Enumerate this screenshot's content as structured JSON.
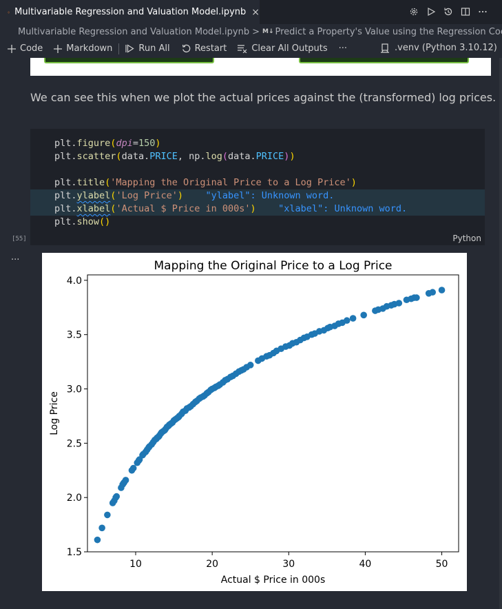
{
  "tab": {
    "title": "Multivariable Regression and Valuation Model.ipynb",
    "close": "×"
  },
  "title_actions": [
    "settings-icon",
    "run-icon",
    "history-icon",
    "split-editor-icon",
    "more-icon"
  ],
  "breadcrumb": {
    "file": "Multivariable Regression and Valuation Model.ipynb",
    "separator": ">",
    "md_badge": "M↓",
    "section": "Predict a Property's Value using the Regression Coeffic"
  },
  "toolbar": {
    "code": "Code",
    "markdown": "Markdown",
    "run_all": "Run All",
    "restart": "Restart",
    "clear_outputs": "Clear All Outputs",
    "more": "···"
  },
  "kernel": ".venv (Python 3.10.12)",
  "markdown_text": "We can see this when we plot the actual prices against the (transformed) log prices.",
  "code_lines": [
    "plt.figure(dpi=150)",
    "plt.scatter(data.PRICE, np.log(data.PRICE))",
    "",
    "plt.title('Mapping the Original Price to a Log Price')",
    "plt.ylabel('Log Price')",
    "plt.xlabel('Actual $ Price in 000s')"
  ],
  "code_last": "plt.show()",
  "diagnostics": [
    "\"ylabel\": Unknown word.",
    "\"xlabel\": Unknown word."
  ],
  "cell_language": "Python",
  "execution_count": "[55]",
  "output_dots": "...",
  "colors": {
    "marker": "#1f77b4",
    "accent": "#79c142"
  },
  "chart_data": {
    "type": "scatter",
    "title": "Mapping the Original Price to a Log Price",
    "xlabel": "Actual $ Price in 000s",
    "ylabel": "Log Price",
    "xlim": [
      3.7,
      52.2
    ],
    "ylim": [
      1.5,
      4.05
    ],
    "xticks": [
      10,
      20,
      30,
      40,
      50
    ],
    "yticks": [
      1.5,
      2.0,
      2.5,
      3.0,
      3.5,
      4.0
    ],
    "grid": false,
    "x": [
      5.0,
      5.6,
      6.3,
      7.0,
      7.2,
      7.4,
      7.5,
      8.1,
      8.3,
      8.4,
      8.5,
      8.7,
      9.5,
      9.7,
      10.2,
      10.4,
      10.5,
      10.9,
      11.0,
      11.3,
      11.5,
      11.7,
      11.8,
      12.1,
      12.3,
      12.5,
      12.7,
      12.8,
      13.0,
      13.1,
      13.3,
      13.4,
      13.6,
      13.8,
      13.9,
      14.1,
      14.3,
      14.4,
      14.6,
      14.8,
      15.0,
      15.2,
      15.4,
      15.6,
      15.7,
      16.0,
      16.2,
      16.5,
      16.7,
      17.0,
      17.2,
      17.5,
      17.8,
      18.0,
      18.3,
      18.5,
      18.8,
      19.0,
      19.3,
      19.5,
      19.8,
      20.0,
      20.3,
      20.5,
      20.8,
      21.0,
      21.4,
      21.7,
      22.0,
      22.4,
      22.7,
      23.1,
      23.5,
      23.8,
      24.1,
      24.5,
      25.0,
      26.0,
      26.5,
      27.1,
      27.5,
      28.0,
      28.4,
      29.0,
      29.6,
      30.1,
      30.5,
      31.0,
      31.5,
      32.0,
      32.4,
      33.0,
      33.4,
      34.0,
      34.6,
      35.1,
      35.4,
      36.0,
      36.5,
      37.0,
      37.6,
      38.4,
      39.8,
      41.3,
      41.7,
      42.3,
      42.8,
      43.4,
      43.8,
      44.4,
      45.4,
      46.0,
      46.4,
      46.7,
      48.3,
      48.8,
      50.0
    ],
    "y": [
      1.61,
      1.72,
      1.84,
      1.95,
      1.97,
      2.0,
      2.01,
      2.09,
      2.12,
      2.13,
      2.14,
      2.16,
      2.25,
      2.27,
      2.32,
      2.34,
      2.35,
      2.39,
      2.4,
      2.42,
      2.44,
      2.46,
      2.47,
      2.49,
      2.51,
      2.53,
      2.54,
      2.55,
      2.56,
      2.57,
      2.59,
      2.6,
      2.61,
      2.62,
      2.63,
      2.65,
      2.66,
      2.67,
      2.68,
      2.69,
      2.71,
      2.72,
      2.73,
      2.74,
      2.75,
      2.77,
      2.79,
      2.8,
      2.82,
      2.83,
      2.84,
      2.86,
      2.88,
      2.89,
      2.91,
      2.92,
      2.93,
      2.94,
      2.96,
      2.97,
      2.99,
      3.0,
      3.01,
      3.02,
      3.03,
      3.04,
      3.06,
      3.08,
      3.09,
      3.11,
      3.12,
      3.14,
      3.16,
      3.17,
      3.18,
      3.2,
      3.22,
      3.26,
      3.28,
      3.3,
      3.31,
      3.33,
      3.35,
      3.37,
      3.39,
      3.4,
      3.42,
      3.43,
      3.45,
      3.47,
      3.48,
      3.5,
      3.51,
      3.53,
      3.54,
      3.56,
      3.57,
      3.58,
      3.6,
      3.61,
      3.63,
      3.65,
      3.68,
      3.72,
      3.73,
      3.74,
      3.76,
      3.77,
      3.78,
      3.79,
      3.82,
      3.83,
      3.84,
      3.84,
      3.88,
      3.89,
      3.91
    ]
  }
}
